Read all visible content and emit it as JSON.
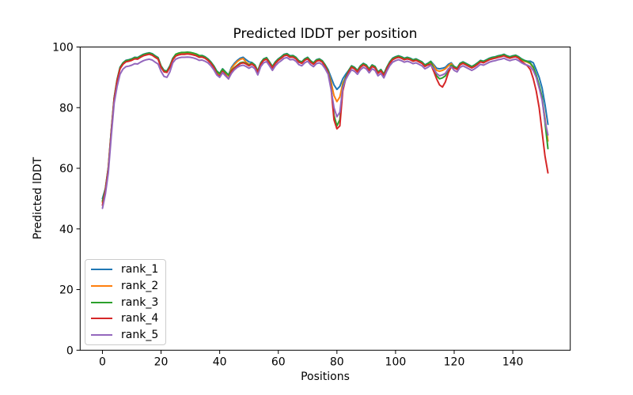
{
  "figure": {
    "title": "Predicted lDDT per position",
    "xlabel": "Positions",
    "ylabel": "Predicted lDDT"
  },
  "legend": {
    "entries": [
      {
        "label": "rank_1",
        "color": "#1f77b4"
      },
      {
        "label": "rank_2",
        "color": "#ff7f0e"
      },
      {
        "label": "rank_3",
        "color": "#2ca02c"
      },
      {
        "label": "rank_4",
        "color": "#d62728"
      },
      {
        "label": "rank_5",
        "color": "#9467bd"
      }
    ]
  },
  "chart_data": {
    "type": "line",
    "title": "Predicted lDDT per position",
    "xlabel": "Positions",
    "ylabel": "Predicted lDDT",
    "xlim": [
      -7.6,
      159.6
    ],
    "ylim": [
      0,
      100
    ],
    "xticks": [
      0,
      20,
      40,
      60,
      80,
      100,
      120,
      140
    ],
    "yticks": [
      0,
      20,
      40,
      60,
      80,
      100
    ],
    "grid": false,
    "legend_position": "lower left",
    "x": {
      "start": 0,
      "end": 152,
      "step": 1
    },
    "series": [
      {
        "name": "rank_1",
        "color": "#1f77b4",
        "values": [
          50.0,
          53.3,
          60.3,
          72.3,
          83.3,
          89.3,
          93.3,
          94.8,
          95.6,
          95.8,
          96.1,
          96.6,
          96.5,
          97.1,
          97.6,
          97.9,
          98.1,
          97.8,
          97.1,
          96.5,
          93.8,
          92.3,
          92.1,
          93.8,
          96.3,
          97.5,
          97.9,
          98.1,
          98.1,
          98.2,
          98.1,
          97.9,
          97.6,
          97.1,
          97.2,
          96.8,
          96.1,
          95.1,
          93.8,
          92.1,
          91.3,
          92.8,
          91.8,
          90.8,
          93.3,
          94.6,
          95.6,
          96.3,
          96.6,
          95.8,
          95.1,
          94.9,
          94.1,
          92.1,
          94.8,
          96.1,
          96.5,
          95.1,
          93.6,
          95.1,
          96.1,
          96.8,
          97.6,
          97.8,
          97.1,
          97.2,
          96.6,
          95.5,
          95.1,
          96.1,
          96.6,
          95.5,
          94.8,
          95.8,
          96.1,
          95.5,
          94.1,
          92.5,
          90.0,
          87.5,
          86.0,
          87.0,
          89.5,
          91.0,
          92.3,
          93.8,
          93.3,
          92.3,
          93.8,
          94.6,
          94.1,
          92.8,
          94.1,
          93.6,
          91.8,
          92.6,
          91.1,
          93.3,
          95.1,
          96.3,
          96.8,
          97.1,
          96.8,
          96.3,
          96.6,
          96.3,
          95.8,
          96.1,
          95.6,
          95.1,
          94.1,
          94.6,
          95.3,
          94.2,
          93.0,
          92.8,
          93.0,
          93.3,
          94.3,
          94.8,
          93.6,
          93.1,
          94.6,
          95.1,
          94.6,
          94.1,
          93.6,
          94.1,
          94.8,
          95.6,
          95.3,
          95.8,
          96.3,
          96.6,
          96.8,
          97.1,
          97.3,
          97.6,
          97.1,
          96.8,
          97.1,
          97.3,
          96.8,
          96.1,
          95.6,
          95.3,
          95.3,
          94.8,
          92.5,
          90.0,
          86.5,
          81.0,
          74.5
        ]
      },
      {
        "name": "rank_2",
        "color": "#ff7f0e",
        "values": [
          48.8,
          53.0,
          60.0,
          72.0,
          83.0,
          89.0,
          93.0,
          94.5,
          95.3,
          95.5,
          95.8,
          96.3,
          96.2,
          96.8,
          97.3,
          97.6,
          97.8,
          97.5,
          96.8,
          96.2,
          93.5,
          92.0,
          91.8,
          93.5,
          96.0,
          97.2,
          97.6,
          97.8,
          97.8,
          97.9,
          97.8,
          97.6,
          97.3,
          96.8,
          96.9,
          96.5,
          95.8,
          94.8,
          93.5,
          91.8,
          91.0,
          92.5,
          91.5,
          90.5,
          92.9,
          94.2,
          95.2,
          95.9,
          96.2,
          95.0,
          94.3,
          94.6,
          93.8,
          91.8,
          94.5,
          95.8,
          96.2,
          94.8,
          93.3,
          94.8,
          95.8,
          96.5,
          97.3,
          97.5,
          96.8,
          96.9,
          96.3,
          95.2,
          94.8,
          95.8,
          96.3,
          95.2,
          94.5,
          95.5,
          95.8,
          95.2,
          93.8,
          92.0,
          88.5,
          84.0,
          82.0,
          83.5,
          88.0,
          90.0,
          92.0,
          93.5,
          93.0,
          92.0,
          93.5,
          94.3,
          93.8,
          92.5,
          93.8,
          93.3,
          91.5,
          92.3,
          90.8,
          93.0,
          94.8,
          96.0,
          96.5,
          96.8,
          96.5,
          96.0,
          96.3,
          96.0,
          95.5,
          95.8,
          95.3,
          94.8,
          93.8,
          94.3,
          95.0,
          93.8,
          92.3,
          92.0,
          92.3,
          92.8,
          93.8,
          94.5,
          93.3,
          92.8,
          94.3,
          94.8,
          94.3,
          93.8,
          93.3,
          93.8,
          94.5,
          95.3,
          95.0,
          95.5,
          96.0,
          96.3,
          96.5,
          96.8,
          97.0,
          97.3,
          96.8,
          96.5,
          96.8,
          97.0,
          96.5,
          95.8,
          95.3,
          95.0,
          94.5,
          93.2,
          90.5,
          87.0,
          83.0,
          76.5,
          69.0
        ]
      },
      {
        "name": "rank_3",
        "color": "#2ca02c",
        "values": [
          49.2,
          53.2,
          60.2,
          72.2,
          83.2,
          89.2,
          93.2,
          94.7,
          95.5,
          95.7,
          96.0,
          96.5,
          96.4,
          97.0,
          97.5,
          97.8,
          98.0,
          97.7,
          97.0,
          96.4,
          93.7,
          92.2,
          92.0,
          93.7,
          96.2,
          97.6,
          98.0,
          98.2,
          98.2,
          98.3,
          98.2,
          98.0,
          97.7,
          97.2,
          97.1,
          96.7,
          96.0,
          95.0,
          93.7,
          92.0,
          91.2,
          92.7,
          91.7,
          90.7,
          92.3,
          93.2,
          94.0,
          94.8,
          95.0,
          94.6,
          94.0,
          94.8,
          94.0,
          92.0,
          94.7,
          96.0,
          96.4,
          95.0,
          93.5,
          95.0,
          96.0,
          96.7,
          97.5,
          97.7,
          97.0,
          97.1,
          96.5,
          95.4,
          95.0,
          96.0,
          96.5,
          95.4,
          94.7,
          95.7,
          96.0,
          95.4,
          94.0,
          92.0,
          87.0,
          77.5,
          74.0,
          76.0,
          87.0,
          90.0,
          92.2,
          93.7,
          93.2,
          92.2,
          93.7,
          94.5,
          94.0,
          92.7,
          94.0,
          93.5,
          91.7,
          92.5,
          91.0,
          93.2,
          95.0,
          96.2,
          96.7,
          97.0,
          96.7,
          96.2,
          96.5,
          96.2,
          95.7,
          96.0,
          95.5,
          95.0,
          94.0,
          94.5,
          95.2,
          93.0,
          90.5,
          89.5,
          89.8,
          90.5,
          92.5,
          94.0,
          93.5,
          93.0,
          94.5,
          95.0,
          94.5,
          94.0,
          93.5,
          94.0,
          94.7,
          95.5,
          95.2,
          95.7,
          96.2,
          96.5,
          96.7,
          97.0,
          97.2,
          97.5,
          97.0,
          96.7,
          97.0,
          97.2,
          96.7,
          96.0,
          95.5,
          95.2,
          94.7,
          93.4,
          90.8,
          87.5,
          83.5,
          75.0,
          66.5
        ]
      },
      {
        "name": "rank_4",
        "color": "#d62728",
        "values": [
          47.8,
          52.8,
          59.8,
          71.8,
          82.8,
          88.8,
          92.8,
          94.3,
          95.1,
          95.3,
          95.6,
          96.1,
          96.0,
          96.6,
          97.1,
          97.4,
          97.6,
          97.3,
          96.6,
          96.0,
          93.3,
          91.8,
          91.6,
          93.3,
          95.8,
          97.0,
          97.4,
          97.6,
          97.6,
          97.7,
          97.6,
          97.4,
          97.1,
          96.6,
          96.7,
          96.3,
          95.6,
          94.6,
          93.3,
          91.2,
          90.3,
          92.0,
          90.8,
          89.5,
          92.0,
          93.0,
          93.8,
          94.5,
          94.8,
          94.4,
          93.8,
          94.4,
          93.6,
          91.6,
          94.3,
          95.6,
          96.0,
          94.6,
          93.1,
          94.6,
          95.6,
          96.3,
          97.1,
          97.3,
          96.6,
          96.7,
          96.1,
          95.0,
          94.6,
          95.6,
          96.1,
          95.0,
          94.3,
          95.3,
          95.6,
          95.0,
          93.6,
          91.5,
          86.5,
          76.0,
          73.0,
          74.0,
          85.5,
          89.5,
          91.8,
          93.3,
          92.8,
          91.8,
          93.3,
          94.1,
          93.6,
          92.3,
          93.6,
          93.1,
          91.3,
          92.1,
          90.6,
          92.8,
          94.6,
          95.8,
          96.3,
          96.6,
          96.3,
          95.8,
          96.1,
          95.8,
          95.3,
          95.6,
          95.1,
          94.6,
          93.6,
          94.1,
          94.3,
          92.0,
          89.5,
          87.5,
          86.8,
          88.5,
          91.5,
          93.5,
          93.1,
          92.6,
          94.1,
          94.6,
          94.1,
          93.6,
          93.1,
          93.6,
          94.3,
          95.1,
          94.8,
          95.3,
          95.8,
          96.1,
          96.3,
          96.6,
          96.8,
          97.1,
          96.6,
          96.3,
          96.6,
          96.8,
          96.3,
          95.3,
          94.5,
          93.8,
          92.5,
          89.5,
          85.5,
          80.0,
          72.0,
          64.0,
          58.5
        ]
      },
      {
        "name": "rank_5",
        "color": "#9467bd",
        "values": [
          46.8,
          51.5,
          58.5,
          70.5,
          81.5,
          87.0,
          91.0,
          92.7,
          93.5,
          93.7,
          94.0,
          94.5,
          94.4,
          95.0,
          95.5,
          95.8,
          96.0,
          95.7,
          95.0,
          94.4,
          92.0,
          90.3,
          90.0,
          91.8,
          94.8,
          96.0,
          96.4,
          96.6,
          96.6,
          96.7,
          96.6,
          96.4,
          96.1,
          95.6,
          95.7,
          95.3,
          94.8,
          93.8,
          92.5,
          90.8,
          90.0,
          91.5,
          90.5,
          89.5,
          91.3,
          92.5,
          93.3,
          93.8,
          94.0,
          93.6,
          93.0,
          93.6,
          92.8,
          90.8,
          93.5,
          94.8,
          95.2,
          93.8,
          92.3,
          93.8,
          94.8,
          95.5,
          96.3,
          96.5,
          95.8,
          95.9,
          95.3,
          94.2,
          93.8,
          94.8,
          95.3,
          94.2,
          93.5,
          94.5,
          94.8,
          94.2,
          92.8,
          91.0,
          86.0,
          80.0,
          77.0,
          78.5,
          86.5,
          89.3,
          91.0,
          92.5,
          92.0,
          91.0,
          92.5,
          93.3,
          92.8,
          91.5,
          92.8,
          92.3,
          90.5,
          91.3,
          89.8,
          92.0,
          93.8,
          95.0,
          95.5,
          95.8,
          95.5,
          95.0,
          95.3,
          95.0,
          94.5,
          94.8,
          94.3,
          93.8,
          92.8,
          93.3,
          94.0,
          92.8,
          91.3,
          90.5,
          90.8,
          91.3,
          92.8,
          93.5,
          92.3,
          91.8,
          93.3,
          93.8,
          93.3,
          92.8,
          92.3,
          92.8,
          93.5,
          94.3,
          94.0,
          94.5,
          95.0,
          95.3,
          95.5,
          95.8,
          96.0,
          96.3,
          95.8,
          95.5,
          95.8,
          96.0,
          95.5,
          94.8,
          94.3,
          94.0,
          93.5,
          92.2,
          90.0,
          86.5,
          82.5,
          75.5,
          71.0
        ]
      }
    ]
  }
}
